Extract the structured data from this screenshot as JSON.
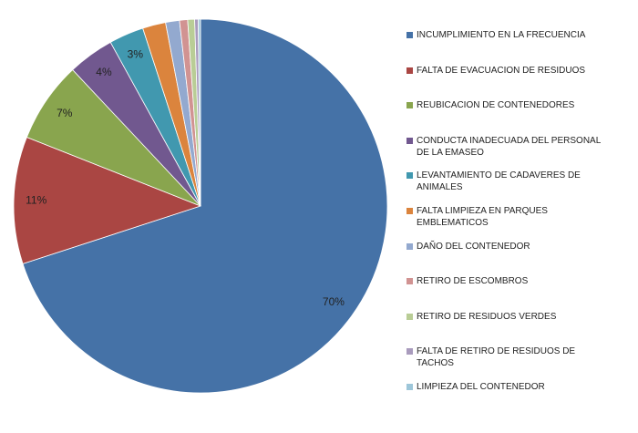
{
  "chart_data": {
    "type": "pie",
    "categories": [
      "INCUMPLIMIENTO EN LA FRECUENCIA",
      "FALTA DE EVACUACION DE RESIDUOS",
      "REUBICACION DE CONTENEDORES",
      "CONDUCTA INADECUADA DEL PERSONAL DE LA EMASEO",
      "LEVANTAMIENTO DE CADAVERES DE ANIMALES",
      "FALTA LIMPIEZA EN PARQUES EMBLEMATICOS",
      "DAÑO DEL CONTENEDOR",
      "RETIRO DE ESCOMBROS",
      "RETIRO DE RESIDUOS VERDES",
      "FALTA DE RETIRO DE RESIDUOS DE TACHOS",
      "LIMPIEZA DEL CONTENEDOR"
    ],
    "values": [
      70,
      11,
      7,
      4,
      3,
      2,
      1.2,
      0.7,
      0.6,
      0.3,
      0.2
    ],
    "value_labels": [
      "70%",
      "11%",
      "7%",
      "4%",
      "3%",
      null,
      null,
      null,
      null,
      null,
      null
    ],
    "colors": [
      "#4572a7",
      "#aa4643",
      "#89a54e",
      "#71588f",
      "#4198af",
      "#db843d",
      "#93a9cf",
      "#d19392",
      "#b9cd96",
      "#a99bbd",
      "#9dc6d9"
    ],
    "legend": "right"
  }
}
